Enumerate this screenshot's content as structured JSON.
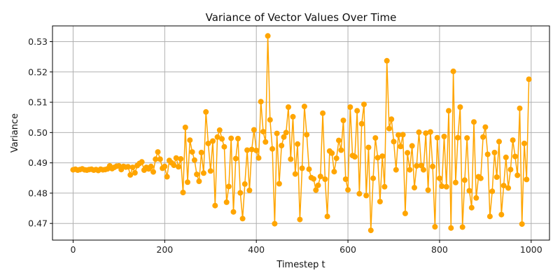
{
  "chart_data": {
    "type": "line",
    "title": "Variance of Vector Values Over Time",
    "xlabel": "Timestep t",
    "ylabel": "Variance",
    "xlim": [
      -45,
      1040
    ],
    "ylim": [
      0.4645,
      0.5352
    ],
    "xticks": [
      0,
      200,
      400,
      600,
      800,
      1000
    ],
    "yticks": [
      0.47,
      0.48,
      0.49,
      0.5,
      0.51,
      0.52,
      0.53
    ],
    "ytick_labels": [
      "0.47",
      "0.48",
      "0.49",
      "0.50",
      "0.51",
      "0.52",
      "0.53"
    ],
    "grid": true,
    "line_color": "#FFA500",
    "marker": "circle",
    "series": [
      {
        "x": [
          0,
          5,
          10,
          15,
          20,
          25,
          30,
          35,
          40,
          45,
          50,
          55,
          60,
          65,
          70,
          75,
          80,
          85,
          90,
          95,
          100,
          105,
          110,
          115,
          120,
          125,
          130,
          135,
          140,
          145,
          150,
          155,
          160,
          165,
          170,
          175,
          180,
          185,
          190,
          195,
          200,
          205,
          210,
          215,
          220,
          225,
          230,
          235,
          240,
          245,
          250,
          255,
          260,
          265,
          270,
          275,
          280,
          285,
          290,
          295,
          300,
          305,
          310,
          315,
          320,
          325,
          330,
          335,
          340,
          345,
          350,
          355,
          360,
          365,
          370,
          375,
          380,
          385,
          390,
          395,
          400,
          405,
          410,
          415,
          420,
          425,
          430,
          435,
          440,
          445,
          450,
          455,
          460,
          465,
          470,
          475,
          480,
          485,
          490,
          495,
          500,
          505,
          510,
          515,
          520,
          525,
          530,
          535,
          540,
          545,
          550,
          555,
          560,
          565,
          570,
          575,
          580,
          585,
          590,
          595,
          600,
          605,
          610,
          615,
          620,
          625,
          630,
          635,
          640,
          645,
          650,
          655,
          660,
          665,
          670,
          675,
          680,
          685,
          690,
          695,
          700,
          705,
          710,
          715,
          720,
          725,
          730,
          735,
          740,
          745,
          750,
          755,
          760,
          765,
          770,
          775,
          780,
          785,
          790,
          795,
          800,
          805,
          810,
          815,
          820,
          825,
          830,
          835,
          840,
          845,
          850,
          855,
          860,
          865,
          870,
          875,
          880,
          885,
          890,
          895,
          900,
          905,
          910,
          915,
          920,
          925,
          930,
          935,
          940,
          945,
          950,
          955,
          960,
          965,
          970,
          975,
          980,
          985,
          990,
          995
        ],
        "y": [
          0.4877,
          0.4879,
          0.4876,
          0.4878,
          0.488,
          0.4877,
          0.4876,
          0.4878,
          0.4879,
          0.4876,
          0.4878,
          0.4875,
          0.4879,
          0.4877,
          0.4878,
          0.488,
          0.489,
          0.4881,
          0.4885,
          0.4889,
          0.489,
          0.4878,
          0.4888,
          0.4886,
          0.4887,
          0.486,
          0.4885,
          0.4867,
          0.4891,
          0.4898,
          0.4903,
          0.4876,
          0.4885,
          0.488,
          0.4888,
          0.487,
          0.4912,
          0.4936,
          0.4912,
          0.4882,
          0.4888,
          0.4854,
          0.4908,
          0.49,
          0.4892,
          0.4916,
          0.4887,
          0.4913,
          0.4802,
          0.5017,
          0.4836,
          0.4975,
          0.4936,
          0.4909,
          0.4862,
          0.4839,
          0.4934,
          0.4866,
          0.5068,
          0.4964,
          0.4873,
          0.4972,
          0.4759,
          0.4985,
          0.5008,
          0.4979,
          0.4953,
          0.477,
          0.4822,
          0.4981,
          0.4738,
          0.4914,
          0.498,
          0.4801,
          0.4716,
          0.483,
          0.4942,
          0.4809,
          0.4944,
          0.5009,
          0.4941,
          0.4916,
          0.5102,
          0.5003,
          0.4969,
          0.5319,
          0.5042,
          0.4946,
          0.4699,
          0.4997,
          0.4831,
          0.4957,
          0.4985,
          0.5,
          0.5084,
          0.4912,
          0.5052,
          0.4863,
          0.4962,
          0.4713,
          0.4882,
          0.5086,
          0.4993,
          0.4879,
          0.4851,
          0.4847,
          0.481,
          0.4826,
          0.4855,
          0.5064,
          0.4846,
          0.4723,
          0.4939,
          0.4932,
          0.4871,
          0.4915,
          0.4974,
          0.4942,
          0.504,
          0.4846,
          0.4811,
          0.5084,
          0.4924,
          0.492,
          0.5072,
          0.4798,
          0.5029,
          0.5093,
          0.4792,
          0.4951,
          0.4677,
          0.4849,
          0.4982,
          0.4917,
          0.4772,
          0.4922,
          0.4821,
          0.5237,
          0.5013,
          0.5044,
          0.497,
          0.4877,
          0.4992,
          0.4954,
          0.4993,
          0.4733,
          0.4933,
          0.4877,
          0.4956,
          0.4818,
          0.489,
          0.5001,
          0.4891,
          0.4877,
          0.4998,
          0.481,
          0.5002,
          0.4888,
          0.4689,
          0.4983,
          0.4849,
          0.4823,
          0.4987,
          0.4821,
          0.5072,
          0.4685,
          0.5202,
          0.4835,
          0.4983,
          0.5084,
          0.4688,
          0.4843,
          0.4982,
          0.4808,
          0.4752,
          0.5035,
          0.4784,
          0.4854,
          0.4849,
          0.4985,
          0.5018,
          0.4928,
          0.4723,
          0.4806,
          0.4934,
          0.4853,
          0.497,
          0.4729,
          0.4825,
          0.4918,
          0.4817,
          0.4878,
          0.4975,
          0.4921,
          0.4859,
          0.508,
          0.4698,
          0.4964,
          0.4845,
          0.5176
        ]
      }
    ]
  }
}
